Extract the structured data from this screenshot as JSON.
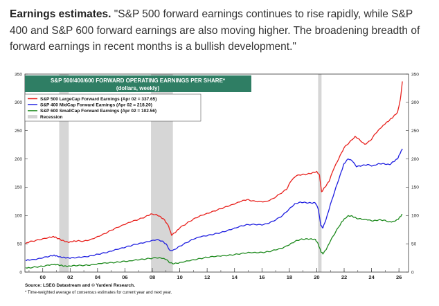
{
  "caption": {
    "lead": "Earnings estimates.",
    "body": "\"S&P 500 forward earnings continues to rise rapidly, while S&P 400 and S&P 600 forward earnings are also moving higher. The broadening breadth of forward earnings in recent months is a bullish development.\""
  },
  "chart_data": {
    "type": "line",
    "title_line1": "S&P 500/400/600 FORWARD OPERATING EARNINGS PER SHARE*",
    "title_line2": "(dollars, weekly)",
    "ylim": [
      0,
      350
    ],
    "yticks": [
      0,
      50,
      100,
      150,
      200,
      250,
      300,
      350
    ],
    "xlim": [
      1998.7,
      2026.7
    ],
    "xticks": [
      {
        "value": 2000,
        "label": "00"
      },
      {
        "value": 2002,
        "label": "02"
      },
      {
        "value": 2004,
        "label": "04"
      },
      {
        "value": 2006,
        "label": "06"
      },
      {
        "value": 2008,
        "label": "08"
      },
      {
        "value": 2010,
        "label": "10"
      },
      {
        "value": 2012,
        "label": "12"
      },
      {
        "value": 2014,
        "label": "14"
      },
      {
        "value": 2016,
        "label": "16"
      },
      {
        "value": 2018,
        "label": "18"
      },
      {
        "value": 2020,
        "label": "20"
      },
      {
        "value": 2022,
        "label": "22"
      },
      {
        "value": 2024,
        "label": "24"
      },
      {
        "value": 2026,
        "label": "26"
      }
    ],
    "recessions": [
      [
        2001.2,
        2001.9
      ],
      [
        2007.9,
        2009.5
      ],
      [
        2020.1,
        2020.35
      ]
    ],
    "legend": [
      {
        "label": "S&P 500 LargeCap Forward Earnings (Apr 02 = 337.65)",
        "color": "#e8211d"
      },
      {
        "label": "S&P 400 MidCap Forward Earnings (Apr 02 = 218.20)",
        "color": "#1f1fe0"
      },
      {
        "label": "S&P 600 SmallCap Forward Earnings (Apr 02 = 102.56)",
        "color": "#1e8a1e"
      },
      {
        "label": "Recession",
        "color": "#d3d3d3"
      }
    ],
    "series": [
      {
        "name": "S&P 500 LargeCap Forward Earnings",
        "color": "#e8211d",
        "x": [
          1998.75,
          1999.0,
          1999.5,
          2000.0,
          2000.5,
          2000.8,
          2001.0,
          2001.3,
          2001.6,
          2001.9,
          2002.2,
          2002.5,
          2003.0,
          2003.5,
          2004.0,
          2004.5,
          2005.0,
          2005.5,
          2006.0,
          2006.5,
          2007.0,
          2007.5,
          2007.9,
          2008.3,
          2008.6,
          2008.9,
          2009.2,
          2009.4,
          2009.7,
          2010.0,
          2010.5,
          2011.0,
          2011.5,
          2012.0,
          2012.5,
          2013.0,
          2013.5,
          2014.0,
          2014.5,
          2014.9,
          2015.3,
          2015.8,
          2016.3,
          2016.8,
          2017.3,
          2017.8,
          2018.1,
          2018.5,
          2018.9,
          2019.3,
          2019.7,
          2020.0,
          2020.2,
          2020.35,
          2020.6,
          2020.9,
          2021.2,
          2021.6,
          2022.0,
          2022.4,
          2022.8,
          2023.1,
          2023.5,
          2023.9,
          2024.3,
          2024.7,
          2025.0,
          2025.3,
          2025.6,
          2025.9,
          2026.1,
          2026.25
        ],
        "values": [
          50,
          53,
          56,
          59,
          62,
          63,
          61,
          57,
          54,
          52,
          54,
          55,
          55,
          58,
          63,
          68,
          74,
          79,
          84,
          89,
          93,
          98,
          103,
          102,
          98,
          92,
          80,
          65,
          70,
          78,
          86,
          94,
          100,
          104,
          108,
          112,
          116,
          120,
          125,
          128,
          126,
          125,
          125,
          130,
          138,
          146,
          160,
          170,
          172,
          173,
          176,
          178,
          172,
          142,
          150,
          160,
          180,
          200,
          220,
          230,
          240,
          235,
          226,
          232,
          245,
          255,
          262,
          268,
          275,
          283,
          305,
          337
        ]
      },
      {
        "name": "S&P 400 MidCap Forward Earnings",
        "color": "#1f1fe0",
        "x": [
          1998.75,
          1999.0,
          1999.5,
          2000.0,
          2000.5,
          2000.8,
          2001.0,
          2001.3,
          2001.6,
          2001.9,
          2002.3,
          2002.8,
          2003.3,
          2003.8,
          2004.3,
          2004.8,
          2005.3,
          2005.8,
          2006.3,
          2006.8,
          2007.3,
          2007.8,
          2008.3,
          2008.7,
          2009.0,
          2009.3,
          2009.6,
          2010.0,
          2010.5,
          2011.0,
          2011.5,
          2012.0,
          2012.5,
          2013.0,
          2013.5,
          2014.0,
          2014.5,
          2015.0,
          2015.5,
          2016.0,
          2016.5,
          2017.0,
          2017.5,
          2018.0,
          2018.4,
          2018.8,
          2019.2,
          2019.6,
          2019.9,
          2020.1,
          2020.3,
          2020.45,
          2020.7,
          2021.0,
          2021.4,
          2021.8,
          2022.0,
          2022.3,
          2022.6,
          2022.9,
          2023.3,
          2023.7,
          2024.1,
          2024.5,
          2024.9,
          2025.3,
          2025.6,
          2025.9,
          2026.1,
          2026.25
        ],
        "values": [
          21,
          21,
          22,
          25,
          28,
          30,
          29,
          27,
          26,
          25,
          25,
          26,
          27,
          30,
          33,
          36,
          40,
          43,
          46,
          49,
          51,
          54,
          57,
          55,
          50,
          38,
          40,
          46,
          52,
          58,
          62,
          64,
          67,
          70,
          74,
          78,
          82,
          84,
          84,
          83,
          86,
          92,
          100,
          112,
          121,
          124,
          123,
          122,
          122,
          112,
          82,
          78,
          95,
          120,
          150,
          178,
          192,
          200,
          196,
          186,
          188,
          190,
          188,
          192,
          192,
          190,
          195,
          200,
          210,
          218
        ]
      },
      {
        "name": "S&P 600 SmallCap Forward Earnings",
        "color": "#1e8a1e",
        "x": [
          1998.75,
          1999.0,
          1999.5,
          2000.0,
          2000.5,
          2000.8,
          2001.0,
          2001.3,
          2001.6,
          2001.9,
          2002.3,
          2002.8,
          2003.3,
          2003.8,
          2004.3,
          2004.8,
          2005.3,
          2005.8,
          2006.3,
          2006.8,
          2007.3,
          2007.8,
          2008.3,
          2008.7,
          2009.0,
          2009.3,
          2009.6,
          2010.0,
          2010.5,
          2011.0,
          2011.5,
          2012.0,
          2012.5,
          2013.0,
          2013.5,
          2014.0,
          2014.5,
          2015.0,
          2015.5,
          2016.0,
          2016.5,
          2017.0,
          2017.5,
          2018.0,
          2018.4,
          2018.8,
          2019.2,
          2019.6,
          2019.9,
          2020.1,
          2020.3,
          2020.45,
          2020.7,
          2021.0,
          2021.4,
          2021.8,
          2022.0,
          2022.3,
          2022.6,
          2022.9,
          2023.3,
          2023.7,
          2024.1,
          2024.5,
          2024.9,
          2025.3,
          2025.6,
          2025.9,
          2026.1,
          2026.25
        ],
        "values": [
          8,
          8,
          9,
          10,
          12,
          13,
          13,
          12,
          11,
          11,
          12,
          12,
          12,
          13,
          15,
          16,
          17,
          19,
          20,
          22,
          23,
          24,
          25,
          24,
          22,
          16,
          15,
          17,
          20,
          22,
          24,
          26,
          27,
          28,
          29,
          31,
          33,
          35,
          35,
          35,
          36,
          39,
          42,
          48,
          54,
          58,
          59,
          59,
          58,
          50,
          36,
          32,
          40,
          55,
          72,
          88,
          94,
          100,
          99,
          95,
          93,
          92,
          90,
          92,
          92,
          89,
          90,
          93,
          98,
          102
        ]
      }
    ],
    "source": "Source: LSEG Datastream and © Yardeni Research.",
    "note": "* Time-weighted average of consensus estimates for current year and next year."
  }
}
